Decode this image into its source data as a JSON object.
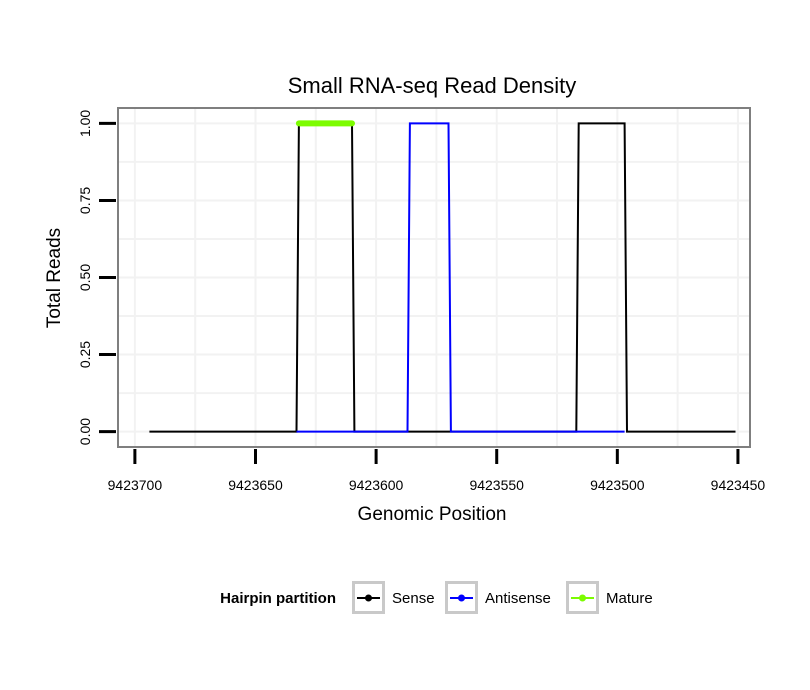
{
  "chart_data": {
    "type": "line",
    "title": "Small RNA-seq Read Density",
    "xlabel": "Genomic Position",
    "ylabel": "Total Reads",
    "x_reversed": true,
    "xlim": [
      9423707,
      9423445
    ],
    "ylim": [
      -0.05,
      1.05
    ],
    "x_ticks": [
      9423700,
      9423650,
      9423600,
      9423550,
      9423500,
      9423450
    ],
    "x_tick_labels": [
      "9423700",
      "9423650",
      "9423600",
      "9423550",
      "9423500",
      "9423450"
    ],
    "y_ticks": [
      0,
      0.25,
      0.5,
      0.75,
      1
    ],
    "y_tick_labels": [
      "0.00",
      "0.25",
      "0.50",
      "0.75",
      "1.00"
    ],
    "grid": true,
    "legend": {
      "title": "Hairpin partition",
      "position": "bottom",
      "entries": [
        "Sense",
        "Antisense",
        "Mature"
      ]
    },
    "series": [
      {
        "name": "Sense",
        "color": "#000000",
        "x": [
          9423694,
          9423633,
          9423632,
          9423610,
          9423609,
          9423517,
          9423516,
          9423497,
          9423496,
          9423451
        ],
        "y": [
          0,
          0,
          1,
          1,
          0,
          0,
          1,
          1,
          0,
          0
        ]
      },
      {
        "name": "Antisense",
        "color": "#0000ff",
        "x": [
          9423633,
          9423610,
          9423609,
          9423587,
          9423586,
          9423570,
          9423569,
          9423517,
          9423516,
          9423497
        ],
        "y": [
          0,
          0,
          0,
          0,
          1,
          1,
          0,
          0,
          0,
          0
        ]
      },
      {
        "name": "Mature",
        "color": "#7cfc00",
        "x": [
          9423632,
          9423610
        ],
        "y": [
          1,
          1
        ]
      }
    ]
  }
}
